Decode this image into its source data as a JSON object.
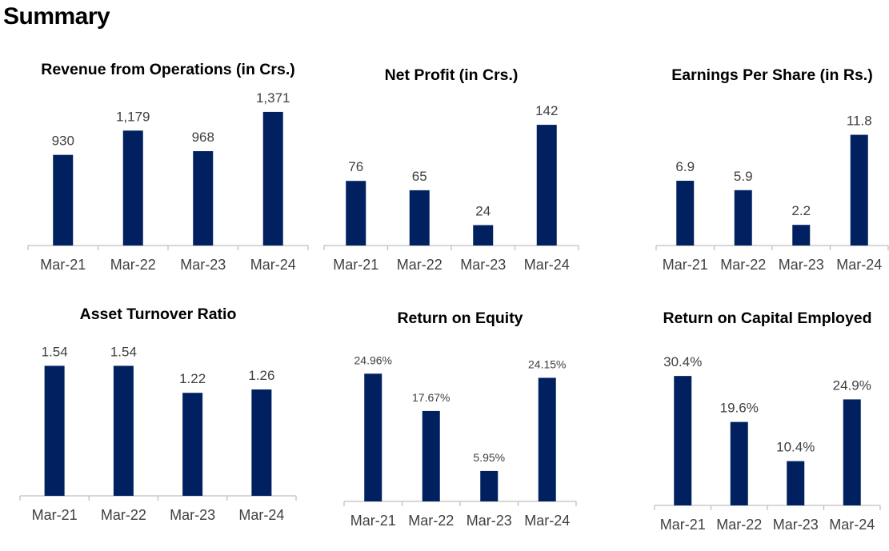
{
  "page": {
    "title": "Summary"
  },
  "style": {
    "bar_color": "#012060",
    "axis_color": "#bfbfbf",
    "label_color": "#404040"
  },
  "chart_data": [
    {
      "type": "bar",
      "title": "Revenue from Operations (in Crs.)",
      "categories": [
        "Mar-21",
        "Mar-22",
        "Mar-23",
        "Mar-24"
      ],
      "values": [
        930,
        1179,
        968,
        1371
      ],
      "value_labels": [
        "930",
        "1,179",
        "968",
        "1,371"
      ],
      "ylim": [
        0,
        1600
      ],
      "grid": false
    },
    {
      "type": "bar",
      "title": "Net Profit (in Crs.)",
      "categories": [
        "Mar-21",
        "Mar-22",
        "Mar-23",
        "Mar-24"
      ],
      "values": [
        76,
        65,
        24,
        142
      ],
      "value_labels": [
        "76",
        "65",
        "24",
        "142"
      ],
      "ylim": [
        0,
        175
      ],
      "grid": false
    },
    {
      "type": "bar",
      "title": "Earnings Per Share (in Rs.)",
      "categories": [
        "Mar-21",
        "Mar-22",
        "Mar-23",
        "Mar-24"
      ],
      "values": [
        6.9,
        5.9,
        2.2,
        11.8
      ],
      "value_labels": [
        "6.9",
        "5.9",
        "2.2",
        "11.8"
      ],
      "ylim": [
        0,
        15
      ],
      "grid": false
    },
    {
      "type": "bar",
      "title": "Asset Turnover Ratio",
      "categories": [
        "Mar-21",
        "Mar-22",
        "Mar-23",
        "Mar-24"
      ],
      "values": [
        1.54,
        1.54,
        1.22,
        1.26
      ],
      "value_labels": [
        "1.54",
        "1.54",
        "1.22",
        "1.26"
      ],
      "ylim": [
        0,
        1.8
      ],
      "grid": false
    },
    {
      "type": "bar",
      "title": "Return on Equity",
      "categories": [
        "Mar-21",
        "Mar-22",
        "Mar-23",
        "Mar-24"
      ],
      "values": [
        24.96,
        17.67,
        5.95,
        24.15
      ],
      "value_labels": [
        "24.96%",
        "17.67%",
        "5.95%",
        "24.15%"
      ],
      "ylim": [
        0,
        30
      ],
      "grid": false
    },
    {
      "type": "bar",
      "title": "Return on Capital Employed",
      "categories": [
        "Mar-21",
        "Mar-22",
        "Mar-23",
        "Mar-24"
      ],
      "values": [
        30.4,
        19.6,
        10.4,
        24.9
      ],
      "value_labels": [
        "30.4%",
        "19.6%",
        "10.4%",
        "24.9%"
      ],
      "ylim": [
        0,
        37
      ],
      "grid": false
    }
  ]
}
